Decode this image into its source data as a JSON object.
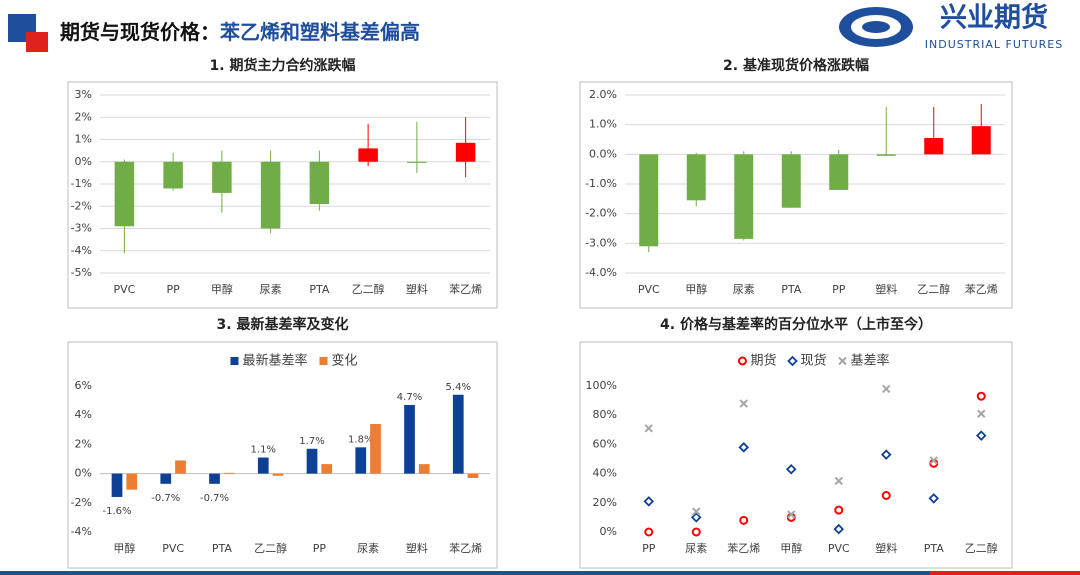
{
  "header": {
    "title": [
      "期货与现货价格：",
      "苯乙烯和塑料基差偏高"
    ],
    "logo_cn": "兴业期货",
    "logo_en": "INDUSTRIAL FUTURES"
  },
  "chart_data": [
    {
      "type": "candlestick",
      "title": "1. 期货主力合约涨跌幅",
      "categories": [
        "PVC",
        "PP",
        "甲醇",
        "尿素",
        "PTA",
        "乙二醇",
        "塑料",
        "苯乙烯"
      ],
      "open": [
        0,
        0,
        0,
        0,
        0,
        0,
        0,
        0
      ],
      "close": [
        -2.9,
        -1.2,
        -1.4,
        -3.0,
        -1.9,
        0.6,
        -0.05,
        0.85
      ],
      "high": [
        0.1,
        0.4,
        0.5,
        0.5,
        0.5,
        1.7,
        1.8,
        2.0
      ],
      "low": [
        -4.1,
        -1.3,
        -2.3,
        -3.2,
        -2.2,
        -0.2,
        -0.5,
        -0.7
      ],
      "up_color": "#ff0000",
      "down_color": "#70ad47",
      "grid": true,
      "ylim": [
        -5,
        3
      ],
      "yticks": [
        {
          "value": -5,
          "label": "-5%"
        },
        {
          "value": -4,
          "label": "-4%"
        },
        {
          "value": -3,
          "label": "-3%"
        },
        {
          "value": -2,
          "label": "-2%"
        },
        {
          "value": -1,
          "label": "-1%"
        },
        {
          "value": 0,
          "label": "0%"
        },
        {
          "value": 1,
          "label": "1%"
        },
        {
          "value": 2,
          "label": "2%"
        },
        {
          "value": 3,
          "label": "3%"
        }
      ]
    },
    {
      "type": "candlestick",
      "title": "2. 基准现货价格涨跌幅",
      "categories": [
        "PVC",
        "甲醇",
        "尿素",
        "PTA",
        "PP",
        "塑料",
        "乙二醇",
        "苯乙烯"
      ],
      "open": [
        0,
        0,
        0,
        0,
        0,
        0,
        0,
        0
      ],
      "close": [
        -3.1,
        -1.55,
        -2.85,
        -1.8,
        -1.2,
        -0.05,
        0.55,
        0.95
      ],
      "high": [
        0,
        0.05,
        0.1,
        0.1,
        0.15,
        1.6,
        1.6,
        1.7
      ],
      "low": [
        -3.3,
        -1.75,
        -2.9,
        -1.8,
        -1.2,
        -0.05,
        0,
        0
      ],
      "up_color": "#ff0000",
      "down_color": "#70ad47",
      "grid": true,
      "ylim": [
        -4,
        2
      ],
      "yticks": [
        {
          "value": -4,
          "label": "-4.0%"
        },
        {
          "value": -3,
          "label": "-3.0%"
        },
        {
          "value": -2,
          "label": "-2.0%"
        },
        {
          "value": -1,
          "label": "-1.0%"
        },
        {
          "value": 0,
          "label": "0.0%"
        },
        {
          "value": 1,
          "label": "1.0%"
        },
        {
          "value": 2,
          "label": "2.0%"
        }
      ]
    },
    {
      "type": "bar",
      "title": "3. 最新基差率及变化",
      "categories": [
        "甲醇",
        "PVC",
        "PTA",
        "乙二醇",
        "PP",
        "尿素",
        "塑料",
        "苯乙烯"
      ],
      "series": [
        {
          "name": "最新基差率",
          "color": "#0e4196",
          "values": [
            -1.6,
            -0.7,
            -0.7,
            1.1,
            1.7,
            1.8,
            4.7,
            5.4
          ],
          "value_labels": [
            "-1.6%",
            "-0.7%",
            "-0.7%",
            "1.1%",
            "1.7%",
            "1.8%",
            "4.7%",
            "5.4%"
          ]
        },
        {
          "name": "变化",
          "color": "#ed7d31",
          "values": [
            -1.1,
            0.9,
            0.05,
            -0.15,
            0.65,
            3.4,
            0.65,
            -0.3
          ]
        }
      ],
      "grid": false,
      "ylim": [
        -4,
        6
      ],
      "yticks": [
        {
          "value": -4,
          "label": "-4%"
        },
        {
          "value": -2,
          "label": "-2%"
        },
        {
          "value": 0,
          "label": "0%"
        },
        {
          "value": 2,
          "label": "2%"
        },
        {
          "value": 4,
          "label": "4%"
        },
        {
          "value": 6,
          "label": "6%"
        }
      ]
    },
    {
      "type": "dot",
      "title": "4. 价格与基差率的百分位水平（上市至今）",
      "categories": [
        "PP",
        "尿素",
        "苯乙烯",
        "甲醇",
        "PVC",
        "塑料",
        "PTA",
        "乙二醇"
      ],
      "series": [
        {
          "name": "期货",
          "color": "#ff0000",
          "marker": "circle",
          "values": [
            0,
            0,
            8,
            10,
            15,
            25,
            47,
            93
          ]
        },
        {
          "name": "现货",
          "color": "#0e4196",
          "marker": "diamond",
          "values": [
            21,
            10,
            58,
            43,
            2,
            53,
            23,
            66
          ]
        },
        {
          "name": "基差率",
          "color": "#a6a6a6",
          "marker": "x",
          "values": [
            71,
            14,
            88,
            12,
            35,
            98,
            49,
            81
          ]
        }
      ],
      "grid": false,
      "ylim": [
        0,
        100
      ],
      "yticks": [
        {
          "value": 0,
          "label": "0%"
        },
        {
          "value": 20,
          "label": "20%"
        },
        {
          "value": 40,
          "label": "40%"
        },
        {
          "value": 60,
          "label": "60%"
        },
        {
          "value": 80,
          "label": "80%"
        },
        {
          "value": 100,
          "label": "100%"
        }
      ]
    }
  ]
}
